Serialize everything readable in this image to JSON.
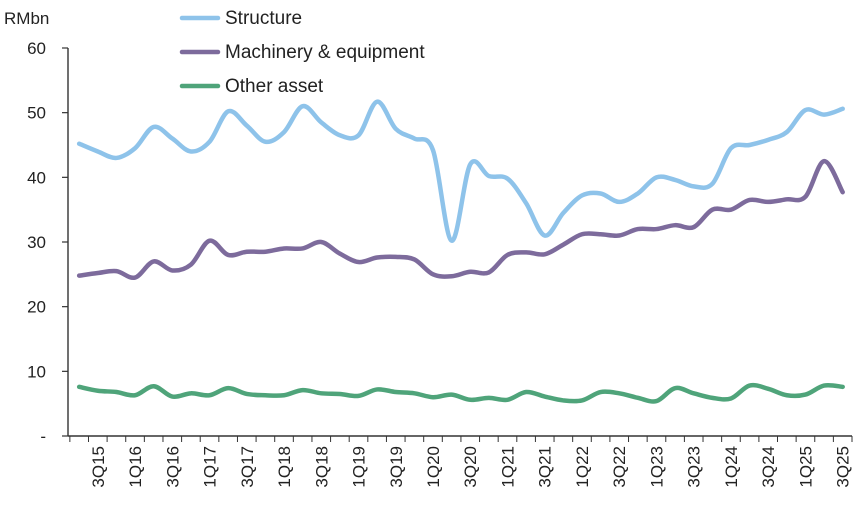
{
  "chart_data": {
    "type": "line",
    "title": "",
    "ylabel": "RMbn",
    "xlabel": "",
    "ylim": [
      0,
      60
    ],
    "yticks": [
      0,
      10,
      20,
      30,
      40,
      50,
      60
    ],
    "ytick_labels": [
      "-",
      "10",
      "20",
      "30",
      "40",
      "50",
      "60"
    ],
    "legend_position": "top-center",
    "grid": false,
    "x": [
      "2Q15",
      "3Q15",
      "4Q15",
      "1Q16",
      "2Q16",
      "3Q16",
      "4Q16",
      "1Q17",
      "2Q17",
      "3Q17",
      "4Q17",
      "1Q18",
      "2Q18",
      "3Q18",
      "4Q18",
      "1Q19",
      "2Q19",
      "3Q19",
      "4Q19",
      "1Q20",
      "2Q20",
      "3Q20",
      "4Q20",
      "1Q21",
      "2Q21",
      "3Q21",
      "4Q21",
      "1Q22",
      "2Q22",
      "3Q22",
      "4Q22",
      "1Q23",
      "2Q23",
      "3Q23",
      "4Q23",
      "1Q24",
      "2Q24",
      "3Q24",
      "4Q24",
      "1Q25",
      "2Q25",
      "3Q25"
    ],
    "x_tick_labels": [
      "3Q15",
      "1Q16",
      "3Q16",
      "1Q17",
      "3Q17",
      "1Q18",
      "3Q18",
      "1Q19",
      "3Q19",
      "1Q20",
      "3Q20",
      "1Q21",
      "3Q21",
      "1Q22",
      "3Q22",
      "1Q23",
      "3Q23",
      "1Q24",
      "3Q24",
      "1Q25",
      "3Q25"
    ],
    "series": [
      {
        "name": "Structure",
        "color": "#8ec3ea",
        "values": [
          45.2,
          44.0,
          43.0,
          44.5,
          47.8,
          46.0,
          44.0,
          45.5,
          50.2,
          48.0,
          45.5,
          47.0,
          51.0,
          48.5,
          46.5,
          46.5,
          51.7,
          47.5,
          46.0,
          44.2,
          30.2,
          42.0,
          40.2,
          39.8,
          36.0,
          31.0,
          34.5,
          37.2,
          37.5,
          36.2,
          37.5,
          40.0,
          39.6,
          38.6,
          39.0,
          44.5,
          45.0,
          45.8,
          47.0,
          50.4,
          49.7,
          50.6
        ]
      },
      {
        "name": "Machinery & equipment",
        "color": "#7d6b9c",
        "values": [
          24.8,
          25.2,
          25.5,
          24.5,
          27.0,
          25.6,
          26.5,
          30.2,
          28.0,
          28.5,
          28.5,
          29.0,
          29.0,
          30.0,
          28.2,
          26.9,
          27.6,
          27.7,
          27.3,
          25.0,
          24.7,
          25.4,
          25.3,
          28.0,
          28.4,
          28.1,
          29.6,
          31.2,
          31.2,
          31.0,
          32.0,
          32.0,
          32.6,
          32.3,
          35.0,
          35.0,
          36.5,
          36.2,
          36.6,
          37.0,
          42.5,
          37.7
        ]
      },
      {
        "name": "Other asset",
        "color": "#4fa47a",
        "values": [
          7.6,
          7.0,
          6.8,
          6.3,
          7.7,
          6.1,
          6.6,
          6.3,
          7.4,
          6.5,
          6.3,
          6.3,
          7.1,
          6.6,
          6.5,
          6.2,
          7.2,
          6.8,
          6.6,
          6.0,
          6.4,
          5.6,
          5.9,
          5.6,
          6.8,
          6.1,
          5.5,
          5.5,
          6.8,
          6.6,
          5.9,
          5.4,
          7.4,
          6.6,
          5.9,
          5.8,
          7.8,
          7.3,
          6.3,
          6.4,
          7.8,
          7.6
        ]
      }
    ]
  }
}
